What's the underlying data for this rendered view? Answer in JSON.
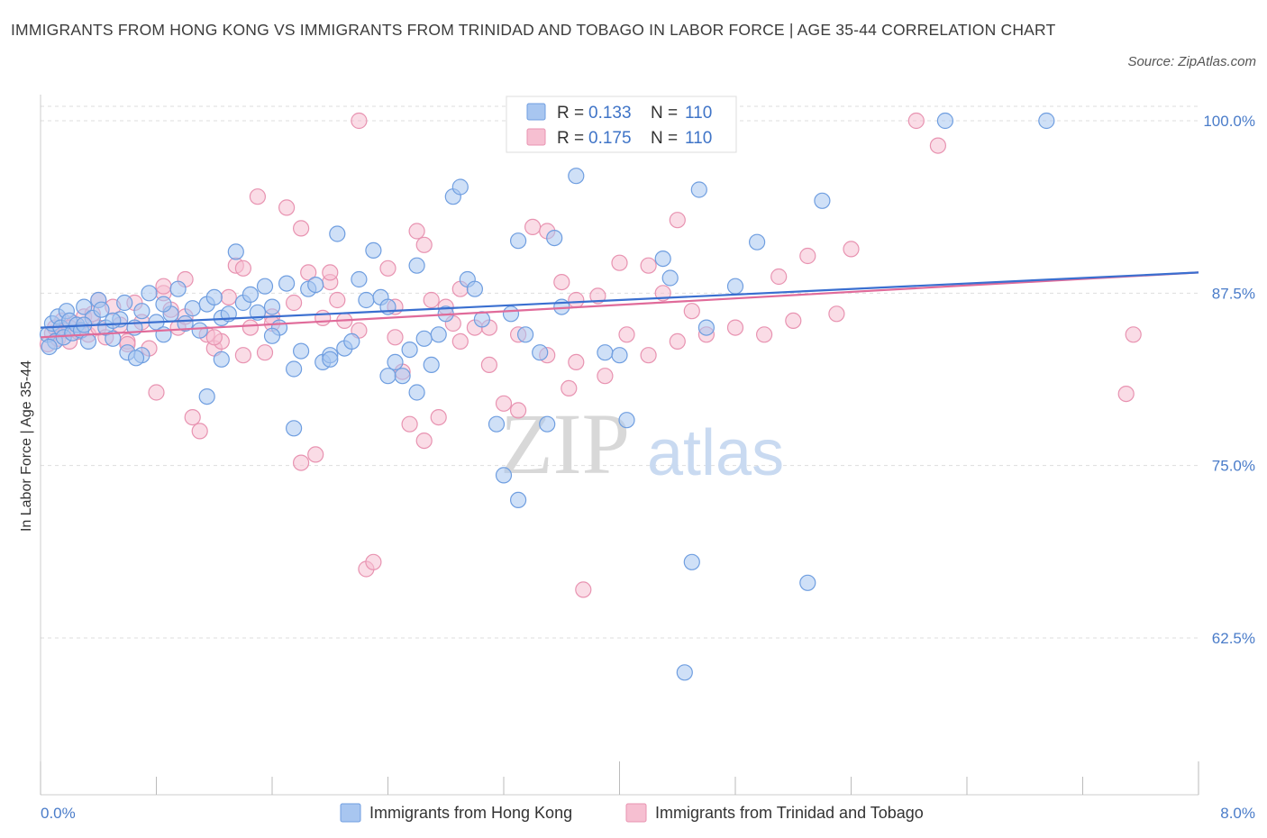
{
  "title": "IMMIGRANTS FROM HONG KONG VS IMMIGRANTS FROM TRINIDAD AND TOBAGO IN LABOR FORCE | AGE 35-44 CORRELATION CHART",
  "source": "Source: ZipAtlas.com",
  "watermark": {
    "zip": "ZIP",
    "atlas": "atlas"
  },
  "legend_box": {
    "r_label": "R =",
    "n_label": "N =",
    "rows": [
      {
        "r": "0.133",
        "n": "110"
      },
      {
        "r": "0.175",
        "n": "110"
      }
    ]
  },
  "colors": {
    "blue_fill": "#a8c6f0",
    "blue_stroke": "#6f9ee0",
    "blue_line": "#3a6fd0",
    "pink_fill": "#f6bfd1",
    "pink_stroke": "#e893b1",
    "pink_line": "#e06b9a",
    "axis_text": "#4a7cc9",
    "grid": "#dddddd"
  },
  "chart_data": {
    "type": "scatter",
    "title": "IMMIGRANTS FROM HONG KONG VS IMMIGRANTS FROM TRINIDAD AND TOBAGO IN LABOR FORCE | AGE 35-44 CORRELATION CHART",
    "xlabel": "",
    "ylabel": "In Labor Force | Age 35-44",
    "xlim": [
      0,
      8
    ],
    "ylim": [
      50,
      101
    ],
    "x_tick_labels": [
      "0.0%",
      "8.0%"
    ],
    "y_ticks": [
      62.5,
      75.0,
      87.5,
      100.0
    ],
    "y_tick_labels": [
      "62.5%",
      "75.0%",
      "87.5%",
      "100.0%"
    ],
    "grid": "horizontal dashed",
    "legend": "top-center and bottom",
    "series": [
      {
        "name": "Immigrants from Hong Kong",
        "r": 0.133,
        "n": 110,
        "trend": {
          "x": [
            0,
            8
          ],
          "y": [
            85.0,
            89.0
          ]
        },
        "points": [
          [
            0.05,
            84.5
          ],
          [
            0.08,
            85.3
          ],
          [
            0.1,
            84.0
          ],
          [
            0.12,
            85.8
          ],
          [
            0.14,
            85.0
          ],
          [
            0.16,
            84.3
          ],
          [
            0.18,
            86.2
          ],
          [
            0.2,
            85.5
          ],
          [
            0.22,
            84.6
          ],
          [
            0.25,
            85.2
          ],
          [
            0.28,
            84.8
          ],
          [
            0.3,
            86.5
          ],
          [
            0.33,
            84.0
          ],
          [
            0.36,
            85.7
          ],
          [
            0.4,
            87.0
          ],
          [
            0.42,
            86.3
          ],
          [
            0.45,
            85.0
          ],
          [
            0.5,
            84.2
          ],
          [
            0.55,
            85.6
          ],
          [
            0.58,
            86.8
          ],
          [
            0.6,
            83.2
          ],
          [
            0.65,
            85.0
          ],
          [
            0.7,
            86.2
          ],
          [
            0.75,
            87.5
          ],
          [
            0.8,
            85.4
          ],
          [
            0.85,
            84.5
          ],
          [
            0.9,
            86.0
          ],
          [
            0.95,
            87.8
          ],
          [
            1.0,
            85.3
          ],
          [
            1.05,
            86.4
          ],
          [
            1.1,
            84.8
          ],
          [
            1.15,
            86.7
          ],
          [
            1.2,
            87.2
          ],
          [
            1.25,
            85.7
          ],
          [
            1.3,
            86.0
          ],
          [
            1.35,
            90.5
          ],
          [
            1.4,
            86.8
          ],
          [
            1.45,
            87.4
          ],
          [
            1.5,
            86.1
          ],
          [
            1.55,
            88.0
          ],
          [
            1.6,
            86.5
          ],
          [
            1.65,
            85.0
          ],
          [
            1.7,
            88.2
          ],
          [
            1.75,
            82.0
          ],
          [
            1.8,
            83.3
          ],
          [
            1.85,
            87.8
          ],
          [
            1.9,
            88.1
          ],
          [
            1.95,
            82.5
          ],
          [
            2.0,
            83.0
          ],
          [
            2.05,
            91.8
          ],
          [
            2.1,
            83.5
          ],
          [
            2.15,
            84.0
          ],
          [
            2.2,
            88.5
          ],
          [
            2.25,
            87.0
          ],
          [
            2.3,
            90.6
          ],
          [
            2.35,
            87.2
          ],
          [
            2.4,
            86.5
          ],
          [
            2.45,
            82.5
          ],
          [
            2.5,
            81.5
          ],
          [
            2.55,
            83.4
          ],
          [
            2.6,
            89.5
          ],
          [
            2.65,
            84.2
          ],
          [
            2.7,
            82.3
          ],
          [
            2.75,
            84.5
          ],
          [
            2.8,
            86.0
          ],
          [
            2.85,
            94.5
          ],
          [
            2.9,
            95.2
          ],
          [
            2.95,
            88.5
          ],
          [
            3.0,
            87.8
          ],
          [
            3.05,
            85.6
          ],
          [
            3.15,
            78.0
          ],
          [
            3.2,
            74.3
          ],
          [
            3.25,
            86.0
          ],
          [
            3.3,
            91.3
          ],
          [
            3.35,
            84.5
          ],
          [
            3.45,
            83.2
          ],
          [
            3.5,
            78.0
          ],
          [
            3.55,
            91.5
          ],
          [
            3.6,
            86.5
          ],
          [
            3.7,
            96.0
          ],
          [
            3.8,
            100.0
          ],
          [
            3.9,
            83.2
          ],
          [
            4.0,
            83.0
          ],
          [
            4.05,
            78.3
          ],
          [
            4.3,
            90.0
          ],
          [
            4.35,
            88.6
          ],
          [
            4.5,
            68.0
          ],
          [
            4.55,
            95.0
          ],
          [
            4.6,
            85.0
          ],
          [
            4.8,
            88.0
          ],
          [
            4.95,
            91.2
          ],
          [
            5.3,
            66.5
          ],
          [
            5.4,
            94.2
          ],
          [
            6.25,
            100.0
          ],
          [
            6.95,
            100.0
          ],
          [
            0.7,
            83.0
          ],
          [
            1.15,
            80.0
          ],
          [
            1.75,
            77.7
          ],
          [
            4.45,
            60.0
          ],
          [
            0.06,
            83.6
          ],
          [
            0.3,
            85.2
          ],
          [
            0.5,
            85.5
          ],
          [
            0.66,
            82.8
          ],
          [
            0.85,
            86.7
          ],
          [
            1.25,
            82.7
          ],
          [
            1.6,
            84.4
          ],
          [
            2.0,
            82.7
          ],
          [
            2.4,
            81.5
          ],
          [
            2.6,
            80.3
          ],
          [
            3.3,
            72.5
          ]
        ]
      },
      {
        "name": "Immigrants from Trinidad and Tobago",
        "r": 0.175,
        "n": 110,
        "trend": {
          "x": [
            0,
            8
          ],
          "y": [
            84.3,
            89.0
          ]
        },
        "points": [
          [
            0.05,
            83.8
          ],
          [
            0.08,
            84.6
          ],
          [
            0.1,
            85.0
          ],
          [
            0.12,
            84.2
          ],
          [
            0.15,
            85.5
          ],
          [
            0.18,
            84.8
          ],
          [
            0.2,
            84.0
          ],
          [
            0.23,
            85.3
          ],
          [
            0.26,
            84.7
          ],
          [
            0.3,
            85.8
          ],
          [
            0.33,
            84.5
          ],
          [
            0.36,
            86.0
          ],
          [
            0.4,
            85.0
          ],
          [
            0.45,
            84.3
          ],
          [
            0.5,
            86.5
          ],
          [
            0.55,
            85.2
          ],
          [
            0.6,
            84.0
          ],
          [
            0.65,
            86.8
          ],
          [
            0.7,
            85.4
          ],
          [
            0.75,
            83.5
          ],
          [
            0.8,
            80.3
          ],
          [
            0.85,
            87.5
          ],
          [
            0.9,
            86.3
          ],
          [
            0.95,
            85.0
          ],
          [
            1.0,
            85.8
          ],
          [
            1.05,
            78.5
          ],
          [
            1.1,
            77.5
          ],
          [
            1.15,
            84.5
          ],
          [
            1.2,
            83.5
          ],
          [
            1.25,
            84.0
          ],
          [
            1.3,
            87.2
          ],
          [
            1.35,
            89.5
          ],
          [
            1.4,
            83.0
          ],
          [
            1.45,
            85.0
          ],
          [
            1.5,
            94.5
          ],
          [
            1.55,
            83.2
          ],
          [
            1.6,
            85.8
          ],
          [
            1.7,
            93.7
          ],
          [
            1.75,
            86.8
          ],
          [
            1.8,
            75.2
          ],
          [
            1.85,
            89.0
          ],
          [
            1.9,
            75.8
          ],
          [
            1.95,
            85.7
          ],
          [
            2.0,
            88.3
          ],
          [
            2.05,
            87.0
          ],
          [
            2.1,
            85.5
          ],
          [
            2.2,
            100.0
          ],
          [
            2.25,
            67.5
          ],
          [
            2.3,
            68.0
          ],
          [
            2.4,
            89.3
          ],
          [
            2.45,
            84.3
          ],
          [
            2.5,
            81.8
          ],
          [
            2.55,
            78.0
          ],
          [
            2.6,
            92.0
          ],
          [
            2.65,
            76.8
          ],
          [
            2.7,
            87.0
          ],
          [
            2.75,
            78.5
          ],
          [
            2.8,
            86.5
          ],
          [
            2.85,
            85.3
          ],
          [
            2.9,
            87.8
          ],
          [
            3.0,
            85.0
          ],
          [
            3.1,
            82.3
          ],
          [
            3.2,
            79.5
          ],
          [
            3.3,
            79.0
          ],
          [
            3.4,
            92.3
          ],
          [
            3.5,
            92.0
          ],
          [
            3.6,
            88.3
          ],
          [
            3.65,
            80.6
          ],
          [
            3.7,
            82.5
          ],
          [
            3.75,
            66.0
          ],
          [
            3.85,
            87.3
          ],
          [
            3.9,
            81.5
          ],
          [
            4.05,
            84.5
          ],
          [
            4.2,
            89.5
          ],
          [
            4.3,
            87.5
          ],
          [
            4.4,
            92.8
          ],
          [
            4.5,
            86.2
          ],
          [
            4.6,
            84.5
          ],
          [
            5.1,
            88.7
          ],
          [
            5.3,
            90.2
          ],
          [
            5.6,
            90.7
          ],
          [
            6.05,
            100.0
          ],
          [
            6.2,
            98.2
          ],
          [
            7.5,
            80.2
          ],
          [
            7.55,
            84.5
          ],
          [
            0.2,
            85.0
          ],
          [
            0.4,
            87.0
          ],
          [
            0.6,
            83.8
          ],
          [
            0.85,
            88.0
          ],
          [
            1.0,
            88.5
          ],
          [
            1.2,
            84.3
          ],
          [
            1.4,
            89.3
          ],
          [
            1.6,
            85.3
          ],
          [
            1.8,
            92.2
          ],
          [
            2.0,
            89.0
          ],
          [
            2.2,
            84.8
          ],
          [
            2.45,
            86.5
          ],
          [
            2.65,
            91.0
          ],
          [
            2.9,
            84.0
          ],
          [
            3.1,
            85.0
          ],
          [
            3.3,
            84.5
          ],
          [
            3.5,
            83.0
          ],
          [
            3.7,
            87.0
          ],
          [
            4.0,
            89.7
          ],
          [
            4.2,
            83.0
          ],
          [
            4.4,
            84.0
          ],
          [
            4.8,
            85.0
          ],
          [
            5.0,
            84.5
          ],
          [
            5.2,
            85.5
          ],
          [
            5.5,
            86.0
          ]
        ]
      }
    ]
  },
  "bottom_legend": [
    {
      "label": "Immigrants from Hong Kong"
    },
    {
      "label": "Immigrants from Trinidad and Tobago"
    }
  ]
}
